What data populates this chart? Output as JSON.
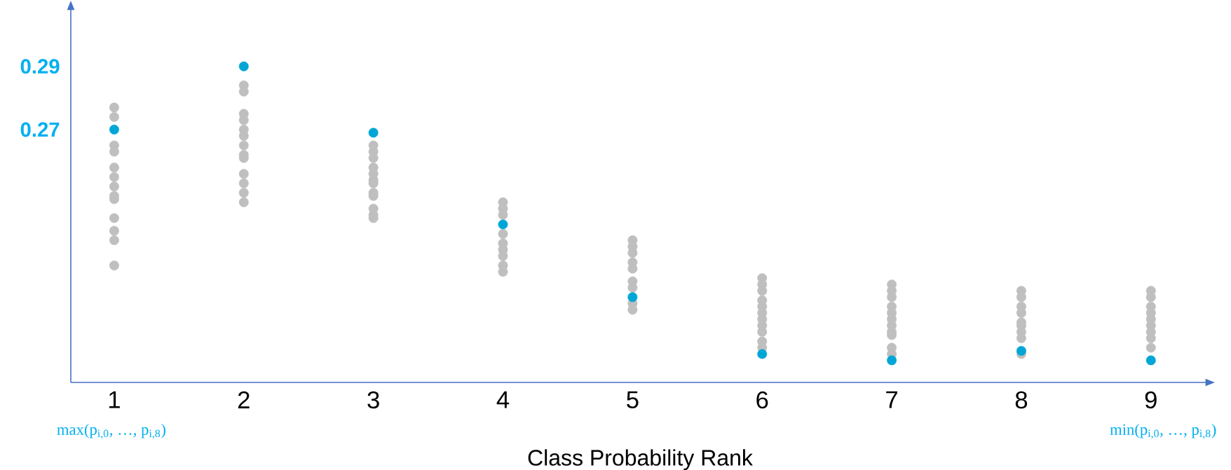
{
  "chart_data": {
    "type": "scatter",
    "xlabel": "Class Probability Rank",
    "xlim": [
      0.665,
      9.45
    ],
    "xticks": [
      1,
      2,
      3,
      4,
      5,
      6,
      7,
      8,
      9
    ],
    "ylim": [
      0.19,
      0.309
    ],
    "yticks": [
      0.27,
      0.29
    ],
    "marker": "circle",
    "annotations": [
      "max(p$_{i,0}$, …, p$_{i,8}$)",
      "min(p$_{i,0}$, …, p$_{i,8}$)"
    ],
    "series": [
      {
        "color": "#bfbfbf",
        "x": [
          1,
          1,
          1,
          1,
          1,
          1,
          1,
          1,
          1,
          1,
          1,
          1,
          1,
          2,
          2,
          2,
          2,
          2,
          2,
          2,
          2,
          2,
          2,
          2,
          2,
          2,
          3,
          3,
          3,
          3,
          3,
          3,
          3,
          3,
          3,
          3,
          3,
          3,
          4,
          4,
          4,
          4,
          4,
          4,
          4,
          4,
          4,
          5,
          5,
          5,
          5,
          5,
          5,
          5,
          5,
          5,
          6,
          6,
          6,
          6,
          6,
          6,
          6,
          6,
          6,
          6,
          6,
          7,
          7,
          7,
          7,
          7,
          7,
          7,
          7,
          7,
          7,
          7,
          8,
          8,
          8,
          8,
          8,
          8,
          8,
          8,
          8,
          9,
          9,
          9,
          9,
          9,
          9,
          9,
          9,
          9
        ],
        "values": [
          0.277,
          0.274,
          0.265,
          0.263,
          0.258,
          0.255,
          0.252,
          0.249,
          0.248,
          0.242,
          0.238,
          0.235,
          0.227,
          0.284,
          0.282,
          0.275,
          0.273,
          0.27,
          0.268,
          0.265,
          0.262,
          0.261,
          0.256,
          0.253,
          0.25,
          0.247,
          0.265,
          0.263,
          0.261,
          0.258,
          0.256,
          0.254,
          0.253,
          0.25,
          0.249,
          0.245,
          0.243,
          0.242,
          0.247,
          0.245,
          0.243,
          0.237,
          0.234,
          0.232,
          0.23,
          0.227,
          0.225,
          0.235,
          0.233,
          0.231,
          0.228,
          0.226,
          0.222,
          0.22,
          0.215,
          0.213,
          0.223,
          0.221,
          0.219,
          0.216,
          0.214,
          0.212,
          0.21,
          0.208,
          0.206,
          0.203,
          0.201,
          0.221,
          0.219,
          0.217,
          0.214,
          0.212,
          0.21,
          0.208,
          0.206,
          0.205,
          0.201,
          0.199,
          0.219,
          0.217,
          0.214,
          0.212,
          0.209,
          0.208,
          0.206,
          0.204,
          0.199,
          0.219,
          0.217,
          0.214,
          0.212,
          0.21,
          0.208,
          0.206,
          0.204,
          0.201
        ]
      },
      {
        "color": "#00a6d6",
        "x": [
          1,
          2,
          3,
          4,
          5,
          6,
          7,
          8,
          9
        ],
        "values": [
          0.27,
          0.29,
          0.269,
          0.24,
          0.217,
          0.199,
          0.197,
          0.2,
          0.197
        ]
      }
    ]
  }
}
